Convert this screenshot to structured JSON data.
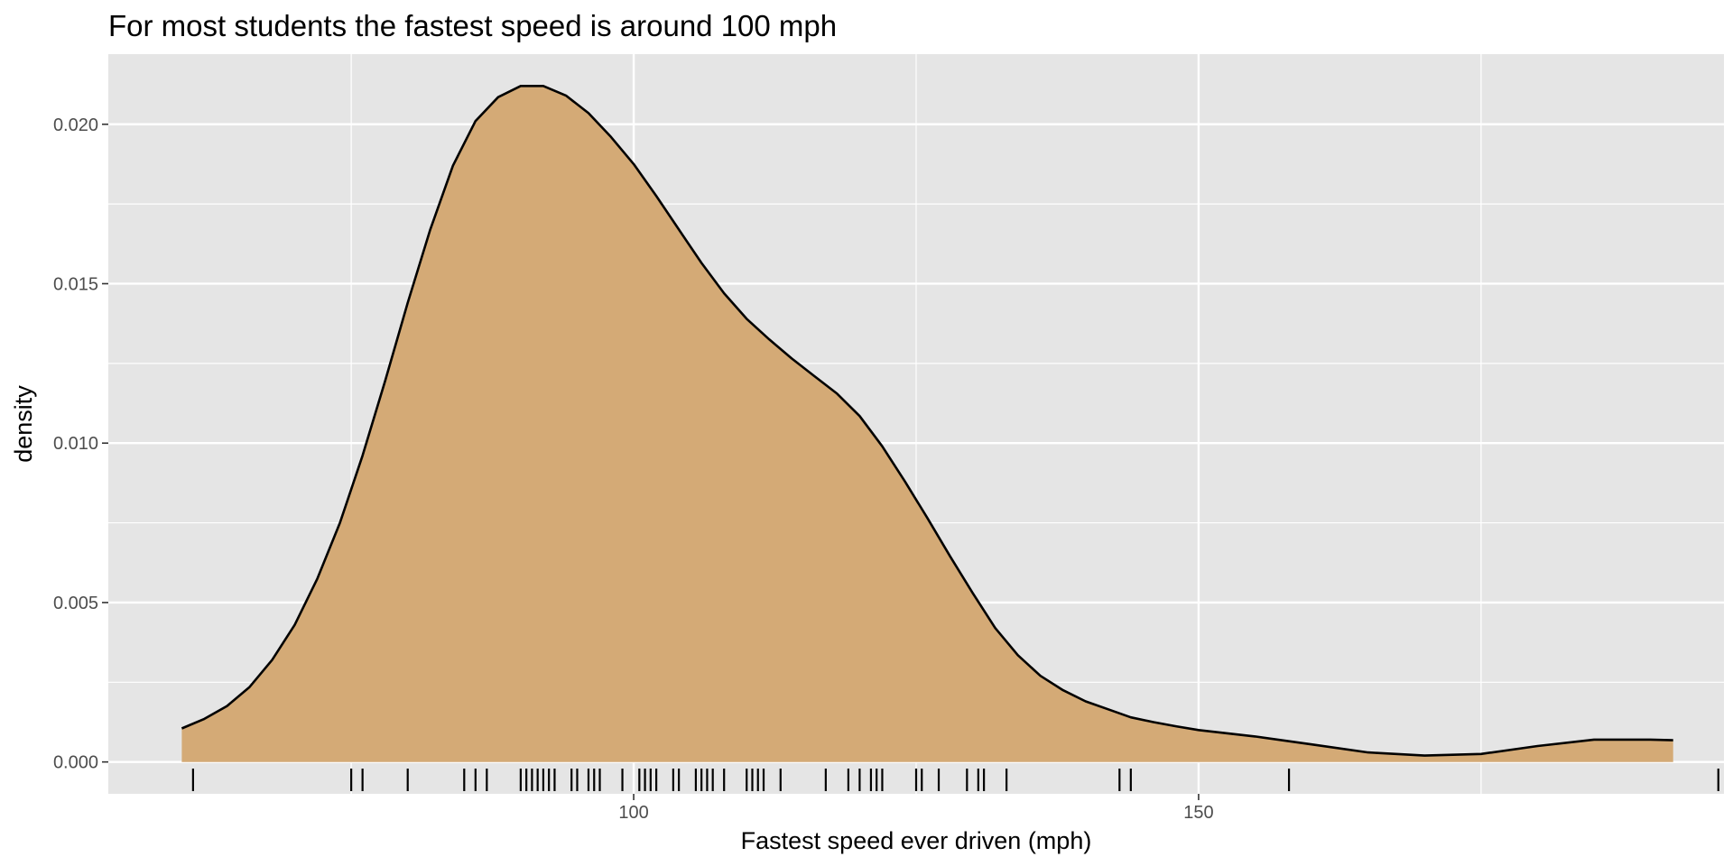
{
  "chart_data": {
    "type": "density",
    "title": "For most students the fastest speed is around 100 mph",
    "xlabel": "Fastest speed ever driven (mph)",
    "ylabel": "density",
    "xlim": [
      53.5,
      196.5
    ],
    "ylim": [
      -0.001,
      0.0222
    ],
    "x_ticks": [
      100,
      150
    ],
    "x_tick_labels": [
      "100",
      "150"
    ],
    "x_minor_ticks": [
      75,
      125,
      175
    ],
    "y_ticks": [
      0.0,
      0.005,
      0.01,
      0.015,
      0.02
    ],
    "y_tick_labels": [
      "0.000",
      "0.005",
      "0.010",
      "0.015",
      "0.020"
    ],
    "y_minor_ticks": [
      0.0025,
      0.0075,
      0.0125,
      0.0175
    ],
    "grid": true,
    "fill_color": "#D4AA76",
    "line_color": "#000000",
    "panel_color": "#E5E5E5",
    "grid_color": "#FFFFFF",
    "density_curve": {
      "x": [
        60,
        62,
        64,
        66,
        68,
        70,
        72,
        74,
        76,
        78,
        80,
        82,
        84,
        86,
        88,
        90,
        92,
        94,
        96,
        98,
        100,
        102,
        104,
        106,
        108,
        110,
        112,
        114,
        116,
        118,
        120,
        122,
        124,
        126,
        128,
        130,
        132,
        134,
        136,
        138,
        140,
        142,
        144,
        146,
        148,
        150,
        155,
        160,
        165,
        170,
        175,
        180,
        185,
        190,
        192
      ],
      "y": [
        0.00105,
        0.00135,
        0.00175,
        0.00235,
        0.0032,
        0.0043,
        0.00575,
        0.0075,
        0.0096,
        0.01195,
        0.0144,
        0.0167,
        0.0187,
        0.0201,
        0.02085,
        0.0212,
        0.0212,
        0.0209,
        0.02035,
        0.0196,
        0.01875,
        0.01775,
        0.0167,
        0.01565,
        0.0147,
        0.0139,
        0.01325,
        0.01265,
        0.0121,
        0.01155,
        0.01085,
        0.0099,
        0.0088,
        0.00765,
        0.00645,
        0.0053,
        0.0042,
        0.00335,
        0.0027,
        0.00225,
        0.0019,
        0.00165,
        0.0014,
        0.00125,
        0.00112,
        0.001,
        0.0008,
        0.00055,
        0.0003,
        0.0002,
        0.00025,
        0.0005,
        0.0007,
        0.0007,
        0.00068
      ]
    },
    "rug": [
      61,
      75,
      76,
      80,
      85,
      86,
      87,
      90,
      90.5,
      91,
      91.5,
      92,
      92.5,
      93,
      94.5,
      95,
      96,
      96.5,
      97,
      99,
      100.5,
      101,
      101.5,
      102,
      103.5,
      104,
      105.5,
      106,
      106.5,
      107,
      108,
      110,
      110.5,
      111,
      111.5,
      113,
      117,
      119,
      120,
      121,
      121.5,
      122,
      125,
      125.5,
      127,
      129.5,
      130.5,
      131,
      133,
      143,
      144,
      158,
      196
    ]
  }
}
